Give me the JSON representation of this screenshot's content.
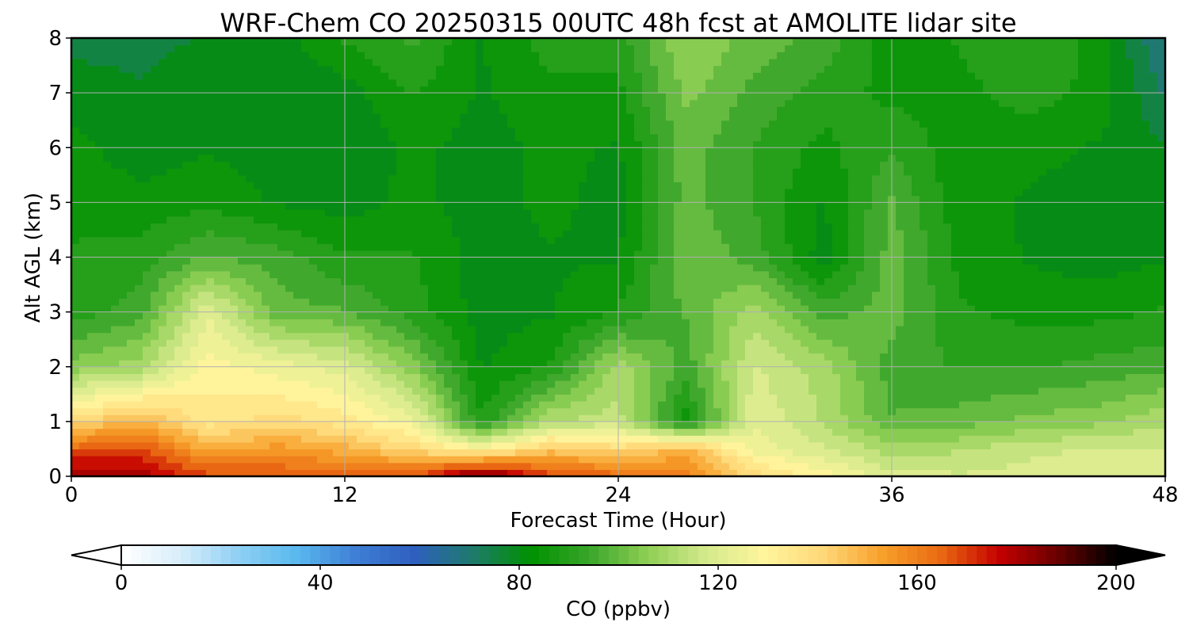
{
  "chart_data": {
    "type": "heatmap",
    "subtype": "filled-contour time-height cross-section",
    "title": "WRF-Chem CO  20250315 00UTC 48h fcst at AMOLITE lidar site",
    "xlabel": "Forecast Time (Hour)",
    "ylabel": "Alt AGL (km)",
    "xlim": [
      0,
      48
    ],
    "ylim": [
      0,
      8
    ],
    "xticks": [
      0,
      12,
      24,
      36,
      48
    ],
    "yticks": [
      0,
      1,
      2,
      3,
      4,
      5,
      6,
      7,
      8
    ],
    "grid": true,
    "x": [
      0,
      3,
      6,
      9,
      12,
      15,
      18,
      21,
      24,
      27,
      30,
      33,
      36,
      39,
      42,
      45,
      48
    ],
    "y": [
      0,
      0.5,
      1,
      2,
      3,
      4,
      5,
      6,
      7,
      8
    ],
    "z": [
      [
        185,
        180,
        170,
        168,
        165,
        168,
        190,
        170,
        165,
        160,
        140,
        130,
        120,
        118,
        120,
        122,
        122
      ],
      [
        165,
        170,
        150,
        155,
        150,
        140,
        130,
        145,
        140,
        150,
        125,
        118,
        110,
        112,
        116,
        118,
        118
      ],
      [
        140,
        150,
        135,
        140,
        135,
        125,
        88,
        112,
        115,
        85,
        122,
        112,
        98,
        100,
        104,
        106,
        112
      ],
      [
        105,
        110,
        130,
        125,
        120,
        105,
        82,
        88,
        110,
        95,
        118,
        110,
        95,
        92,
        92,
        94,
        96
      ],
      [
        90,
        95,
        122,
        100,
        98,
        90,
        80,
        82,
        88,
        98,
        110,
        95,
        100,
        88,
        86,
        86,
        88
      ],
      [
        88,
        90,
        98,
        95,
        88,
        88,
        80,
        82,
        82,
        102,
        95,
        80,
        100,
        86,
        82,
        80,
        82
      ],
      [
        86,
        84,
        86,
        82,
        80,
        84,
        80,
        84,
        80,
        100,
        92,
        82,
        98,
        84,
        82,
        80,
        80
      ],
      [
        84,
        80,
        82,
        80,
        78,
        84,
        80,
        84,
        82,
        100,
        92,
        86,
        92,
        84,
        84,
        82,
        78
      ],
      [
        80,
        78,
        80,
        78,
        80,
        88,
        82,
        86,
        86,
        104,
        96,
        90,
        86,
        86,
        90,
        86,
        72
      ],
      [
        76,
        76,
        78,
        80,
        88,
        94,
        82,
        90,
        90,
        108,
        100,
        96,
        84,
        88,
        92,
        86,
        66
      ]
    ],
    "colorbar": {
      "label": "CO  (ppbv)",
      "ticks": [
        0,
        40,
        80,
        120,
        160,
        200
      ],
      "range": [
        0,
        200
      ],
      "extend": "both",
      "colors": [
        "#ffffff",
        "#d8eefb",
        "#8fd0f4",
        "#5ab8ee",
        "#3f7fd6",
        "#2e5fbf",
        "#1e7a6c",
        "#009100",
        "#3aa62a",
        "#8fcf55",
        "#d5ea8c",
        "#fff59d",
        "#ffd878",
        "#f7a02a",
        "#ea6a12",
        "#c40000",
        "#6a0000",
        "#000000"
      ]
    }
  }
}
